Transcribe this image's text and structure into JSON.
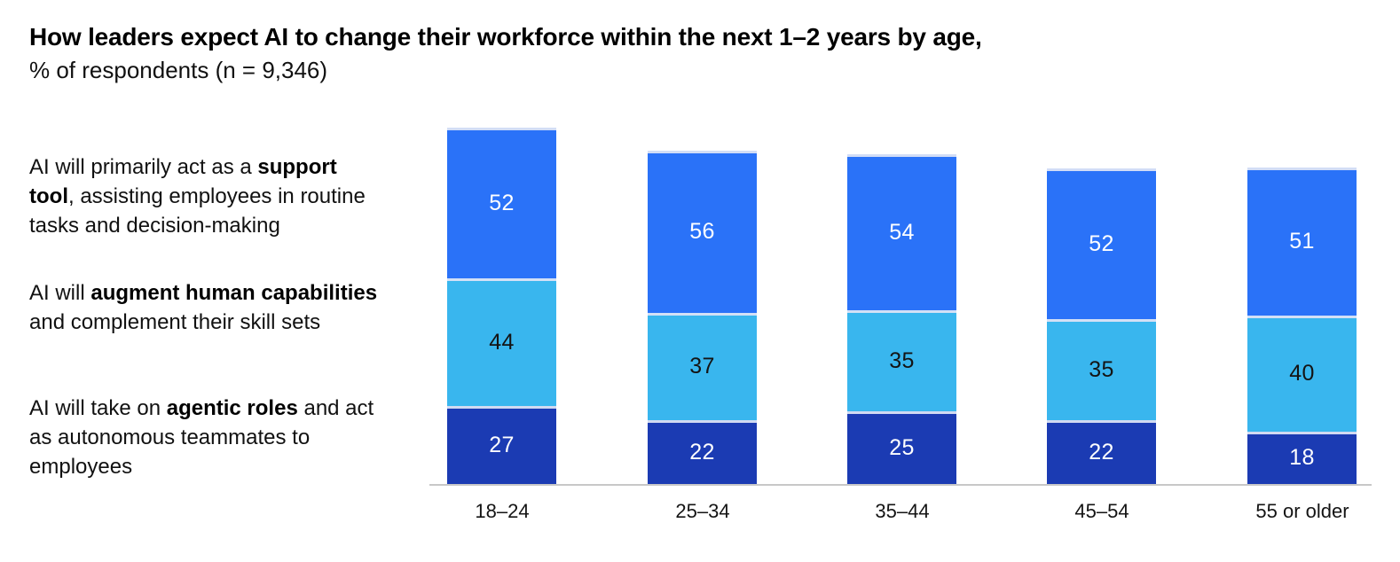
{
  "header": {
    "title": "How leaders expect AI to change their workforce within the next 1–2 years by age,",
    "subtitle": "% of respondents (n = 9,346)"
  },
  "series_labels": [
    {
      "parts": [
        {
          "text": "AI will primarily act as a "
        },
        {
          "text": "support tool",
          "bold": true
        },
        {
          "text": ", assisting employees in routine tasks and decision-making"
        }
      ]
    },
    {
      "parts": [
        {
          "text": "AI will "
        },
        {
          "text": "augment human capabilities",
          "bold": true
        },
        {
          "text": " and complement their skill sets"
        }
      ]
    },
    {
      "parts": [
        {
          "text": "AI will take on "
        },
        {
          "text": "agentic roles",
          "bold": true
        },
        {
          "text": " and act as autonomous teammates to employees"
        }
      ]
    }
  ],
  "chart_data": {
    "type": "bar",
    "stacked": true,
    "title": "How leaders expect AI to change their workforce within the next 1–2 years by age,",
    "subtitle": "% of respondents (n = 9,346)",
    "unit": "% of respondents",
    "categories": [
      "18–24",
      "25–34",
      "35–44",
      "45–54",
      "55 or older"
    ],
    "series": [
      {
        "name": "AI will primarily act as a support tool, assisting employees in routine tasks and decision-making",
        "values": [
          52,
          56,
          54,
          52,
          51
        ],
        "color": "#2a72f8",
        "label_color": "#ffffff",
        "stack_position": "top"
      },
      {
        "name": "AI will augment human capabilities and complement their skill sets",
        "values": [
          44,
          37,
          35,
          35,
          40
        ],
        "color": "#39b6ee",
        "label_color": "#141414",
        "stack_position": "middle"
      },
      {
        "name": "AI will take on agentic roles and act as autonomous teammates to employees",
        "values": [
          27,
          22,
          25,
          22,
          18
        ],
        "color": "#1b3bb3",
        "label_color": "#ffffff",
        "stack_position": "bottom"
      }
    ],
    "value_labels": "inside-center",
    "legend_position": "left-row-labels",
    "grid": false,
    "axis": {
      "baseline_color": "#c8c8c8",
      "tick_label_color": "#141414"
    }
  }
}
